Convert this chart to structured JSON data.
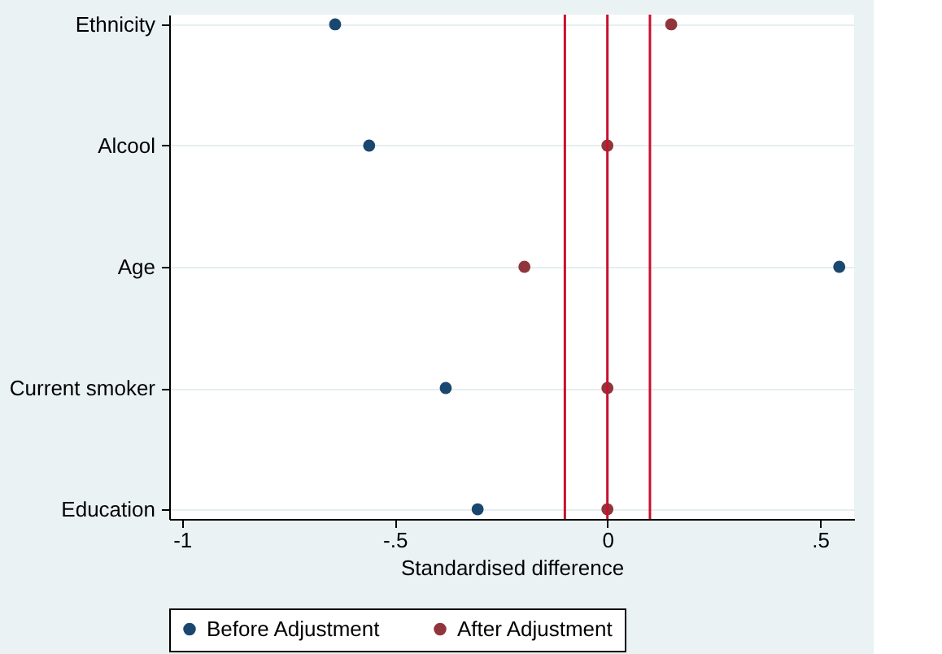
{
  "chart_data": {
    "type": "scatter",
    "xlabel": "Standardised difference",
    "categories": [
      "Ethnicity",
      "Alcool",
      "Age",
      "Current smoker",
      "Education"
    ],
    "orientation": "horizontal",
    "series": [
      {
        "name": "Before Adjustment",
        "color": "#1a476f",
        "values": [
          -0.64,
          -0.56,
          0.545,
          -0.38,
          -0.305
        ]
      },
      {
        "name": "After Adjustment",
        "color": "#90353b",
        "values": [
          0.15,
          0,
          -0.195,
          0,
          0
        ]
      }
    ],
    "xlim": [
      -1.03,
      0.58
    ],
    "xticks": [
      -1,
      {
        "value": -0.5,
        "label": "-.5"
      },
      0,
      {
        "value": 0.5,
        "label": ".5"
      }
    ],
    "ref_lines": [
      {
        "axis": "x",
        "value": -0.1,
        "color": "#c8102e"
      },
      {
        "axis": "x",
        "value": 0,
        "color": "#c8102e"
      },
      {
        "axis": "x",
        "value": 0.1,
        "color": "#c8102e"
      }
    ],
    "grid": "y",
    "legend": "bottom",
    "marker": "circle"
  }
}
